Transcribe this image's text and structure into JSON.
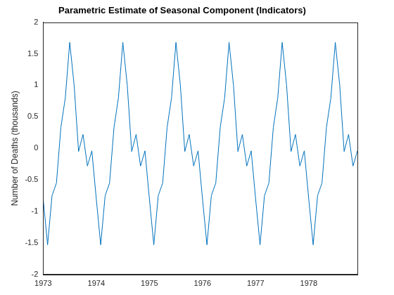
{
  "chart_data": {
    "type": "line",
    "title": "Parametric Estimate of Seasonal Component (Indicators)",
    "y_label": "Number of Deaths (thousands)",
    "x": [
      1973,
      1973.0833,
      1973.1667,
      1973.25,
      1973.3333,
      1973.4167,
      1973.5,
      1973.5833,
      1973.6667,
      1973.75,
      1973.8333,
      1973.9167,
      1974,
      1974.0833,
      1974.1667,
      1974.25,
      1974.3333,
      1974.4167,
      1974.5,
      1974.5833,
      1974.6667,
      1974.75,
      1974.8333,
      1974.9167,
      1975,
      1975.0833,
      1975.1667,
      1975.25,
      1975.3333,
      1975.4167,
      1975.5,
      1975.5833,
      1975.6667,
      1975.75,
      1975.8333,
      1975.9167,
      1976,
      1976.0833,
      1976.1667,
      1976.25,
      1976.3333,
      1976.4167,
      1976.5,
      1976.5833,
      1976.6667,
      1976.75,
      1976.8333,
      1976.9167,
      1977,
      1977.0833,
      1977.1667,
      1977.25,
      1977.3333,
      1977.4167,
      1977.5,
      1977.5833,
      1977.6667,
      1977.75,
      1977.8333,
      1977.9167,
      1978,
      1978.0833,
      1978.1667,
      1978.25,
      1978.3333,
      1978.4167,
      1978.5,
      1978.5833,
      1978.6667,
      1978.75,
      1978.8333,
      1978.9167
    ],
    "values": [
      -0.8,
      -1.53,
      -0.75,
      -0.55,
      0.33,
      0.8,
      1.68,
      1.0,
      -0.05,
      0.22,
      -0.28,
      -0.04,
      -0.8,
      -1.53,
      -0.75,
      -0.55,
      0.33,
      0.8,
      1.68,
      1.0,
      -0.05,
      0.22,
      -0.28,
      -0.04,
      -0.8,
      -1.53,
      -0.75,
      -0.55,
      0.33,
      0.8,
      1.68,
      1.0,
      -0.05,
      0.22,
      -0.28,
      -0.04,
      -0.8,
      -1.53,
      -0.75,
      -0.55,
      0.33,
      0.8,
      1.68,
      1.0,
      -0.05,
      0.22,
      -0.28,
      -0.04,
      -0.8,
      -1.53,
      -0.75,
      -0.55,
      0.33,
      0.8,
      1.68,
      1.0,
      -0.05,
      0.22,
      -0.28,
      -0.04,
      -0.8,
      -1.53,
      -0.75,
      -0.55,
      0.33,
      0.8,
      1.68,
      1.0,
      -0.05,
      0.22,
      -0.28,
      -0.04
    ],
    "color": "#0072bd",
    "xlim": [
      1973,
      1978.9167
    ],
    "xticks": [
      1973,
      1974,
      1975,
      1976,
      1977,
      1978
    ],
    "ylim": [
      -2,
      2
    ],
    "yticks": [
      -2,
      -1.5,
      -1,
      -0.5,
      0,
      0.5,
      1,
      1.5,
      2
    ],
    "grid": false
  }
}
